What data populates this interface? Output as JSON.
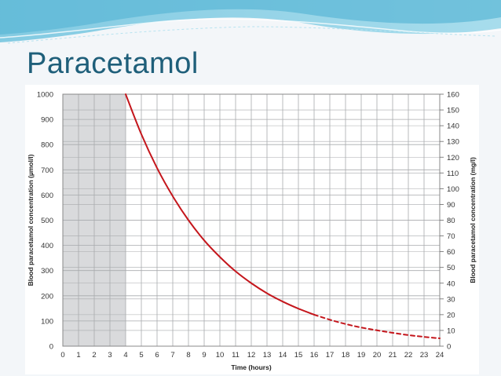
{
  "slide": {
    "title": "Paracetamol"
  },
  "colors": {
    "curve": "#c4161c",
    "shade": "#d9dadc",
    "grid": "#a8aaad",
    "title": "#1f5f7a"
  },
  "chart_data": {
    "type": "line",
    "xlabel": "Time (hours)",
    "ylabel_left": "Blood paracetamol concentration (µmol/l)",
    "ylabel_right": "Blood paracetamol concentration (mg/l)",
    "xlim": [
      0,
      24
    ],
    "ylim_left": [
      0,
      1000
    ],
    "ylim_right": [
      0,
      160
    ],
    "x_ticks": [
      0,
      1,
      2,
      3,
      4,
      5,
      6,
      7,
      8,
      9,
      10,
      11,
      12,
      13,
      14,
      15,
      16,
      17,
      18,
      19,
      20,
      21,
      22,
      23,
      24
    ],
    "y_ticks_left": [
      0,
      100,
      200,
      300,
      400,
      500,
      600,
      700,
      800,
      900,
      1000
    ],
    "y_ticks_right": [
      0,
      10,
      20,
      30,
      40,
      50,
      60,
      70,
      80,
      90,
      100,
      110,
      120,
      130,
      140,
      150,
      160
    ],
    "shaded_region": {
      "from": 0,
      "to": 4
    },
    "grid": true,
    "series": [
      {
        "name": "treatment line (solid)",
        "style": "solid",
        "x": [
          4,
          5,
          6,
          7,
          8,
          9,
          10,
          11,
          12,
          13,
          14,
          15,
          16
        ],
        "y": [
          1000,
          841,
          707,
          595,
          500,
          420,
          354,
          297,
          250,
          210,
          177,
          149,
          125
        ]
      },
      {
        "name": "treatment line (extrapolated)",
        "style": "dashed",
        "x": [
          16,
          17,
          18,
          19,
          20,
          21,
          22,
          23,
          24
        ],
        "y": [
          125,
          105,
          88,
          74,
          63,
          53,
          44,
          37,
          31
        ]
      }
    ]
  }
}
